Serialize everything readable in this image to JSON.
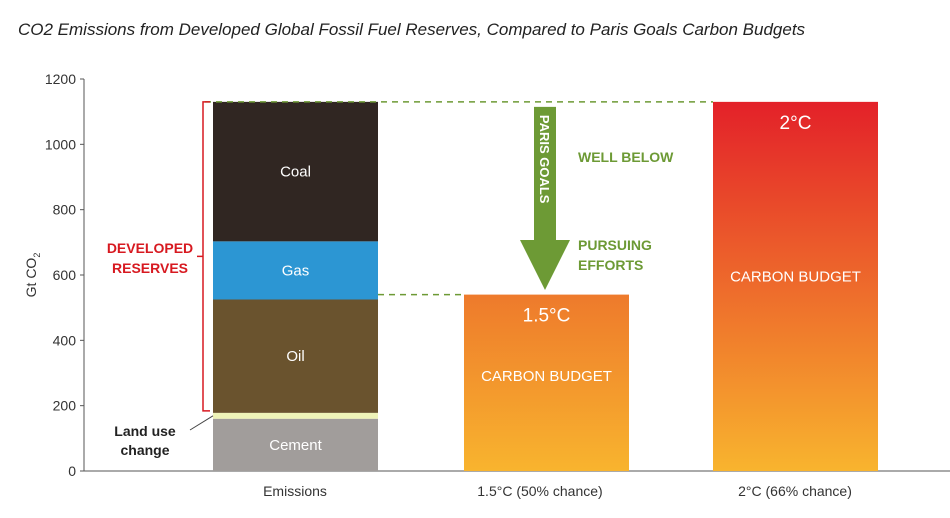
{
  "chart_data": {
    "type": "bar",
    "title": "CO2 Emissions from Developed Global Fossil Fuel Reserves, Compared to Paris Goals Carbon Budgets",
    "ylabel": "Gt CO",
    "ylabel_sub": "2",
    "ylim": [
      0,
      1200
    ],
    "yticks": [
      "0",
      "200",
      "400",
      "600",
      "800",
      "1000",
      "1200"
    ],
    "categories": [
      "Emissions",
      "1.5°C (50% chance)",
      "2°C (66% chance)"
    ],
    "stacked_series": [
      {
        "name": "Cement",
        "value": 160,
        "color": "#a19d9b"
      },
      {
        "name": "Land use change",
        "value": 18,
        "color": "#eef3b8"
      },
      {
        "name": "Oil",
        "value": 347,
        "color": "#6a532e"
      },
      {
        "name": "Gas",
        "value": 178,
        "color": "#2c96d3"
      },
      {
        "name": "Coal",
        "value": 427,
        "color": "#302622"
      }
    ],
    "budgets": [
      {
        "category": "1.5°C (50% chance)",
        "value": 540,
        "label": "1.5°C",
        "sublabel": "CARBON BUDGET"
      },
      {
        "category": "2°C (66% chance)",
        "value": 1130,
        "label": "2°C",
        "sublabel": "CARBON BUDGET"
      }
    ],
    "annotations": {
      "developed_reserves": [
        "DEVELOPED",
        "RESERVES"
      ],
      "land_use": [
        "Land use",
        "change"
      ],
      "paris_goals": "PARIS GOALS",
      "well_below": "WELL BELOW",
      "pursuing": [
        "PURSUING",
        "EFFORTS"
      ]
    },
    "colors": {
      "annotation_green": "#6d9a35",
      "annotation_red": "#d71920",
      "budget_15_top": "#ee7a2c",
      "budget_15_bottom": "#f8b42e",
      "budget_2_top": "#e32129",
      "budget_2_bottom": "#f8b42e"
    }
  }
}
